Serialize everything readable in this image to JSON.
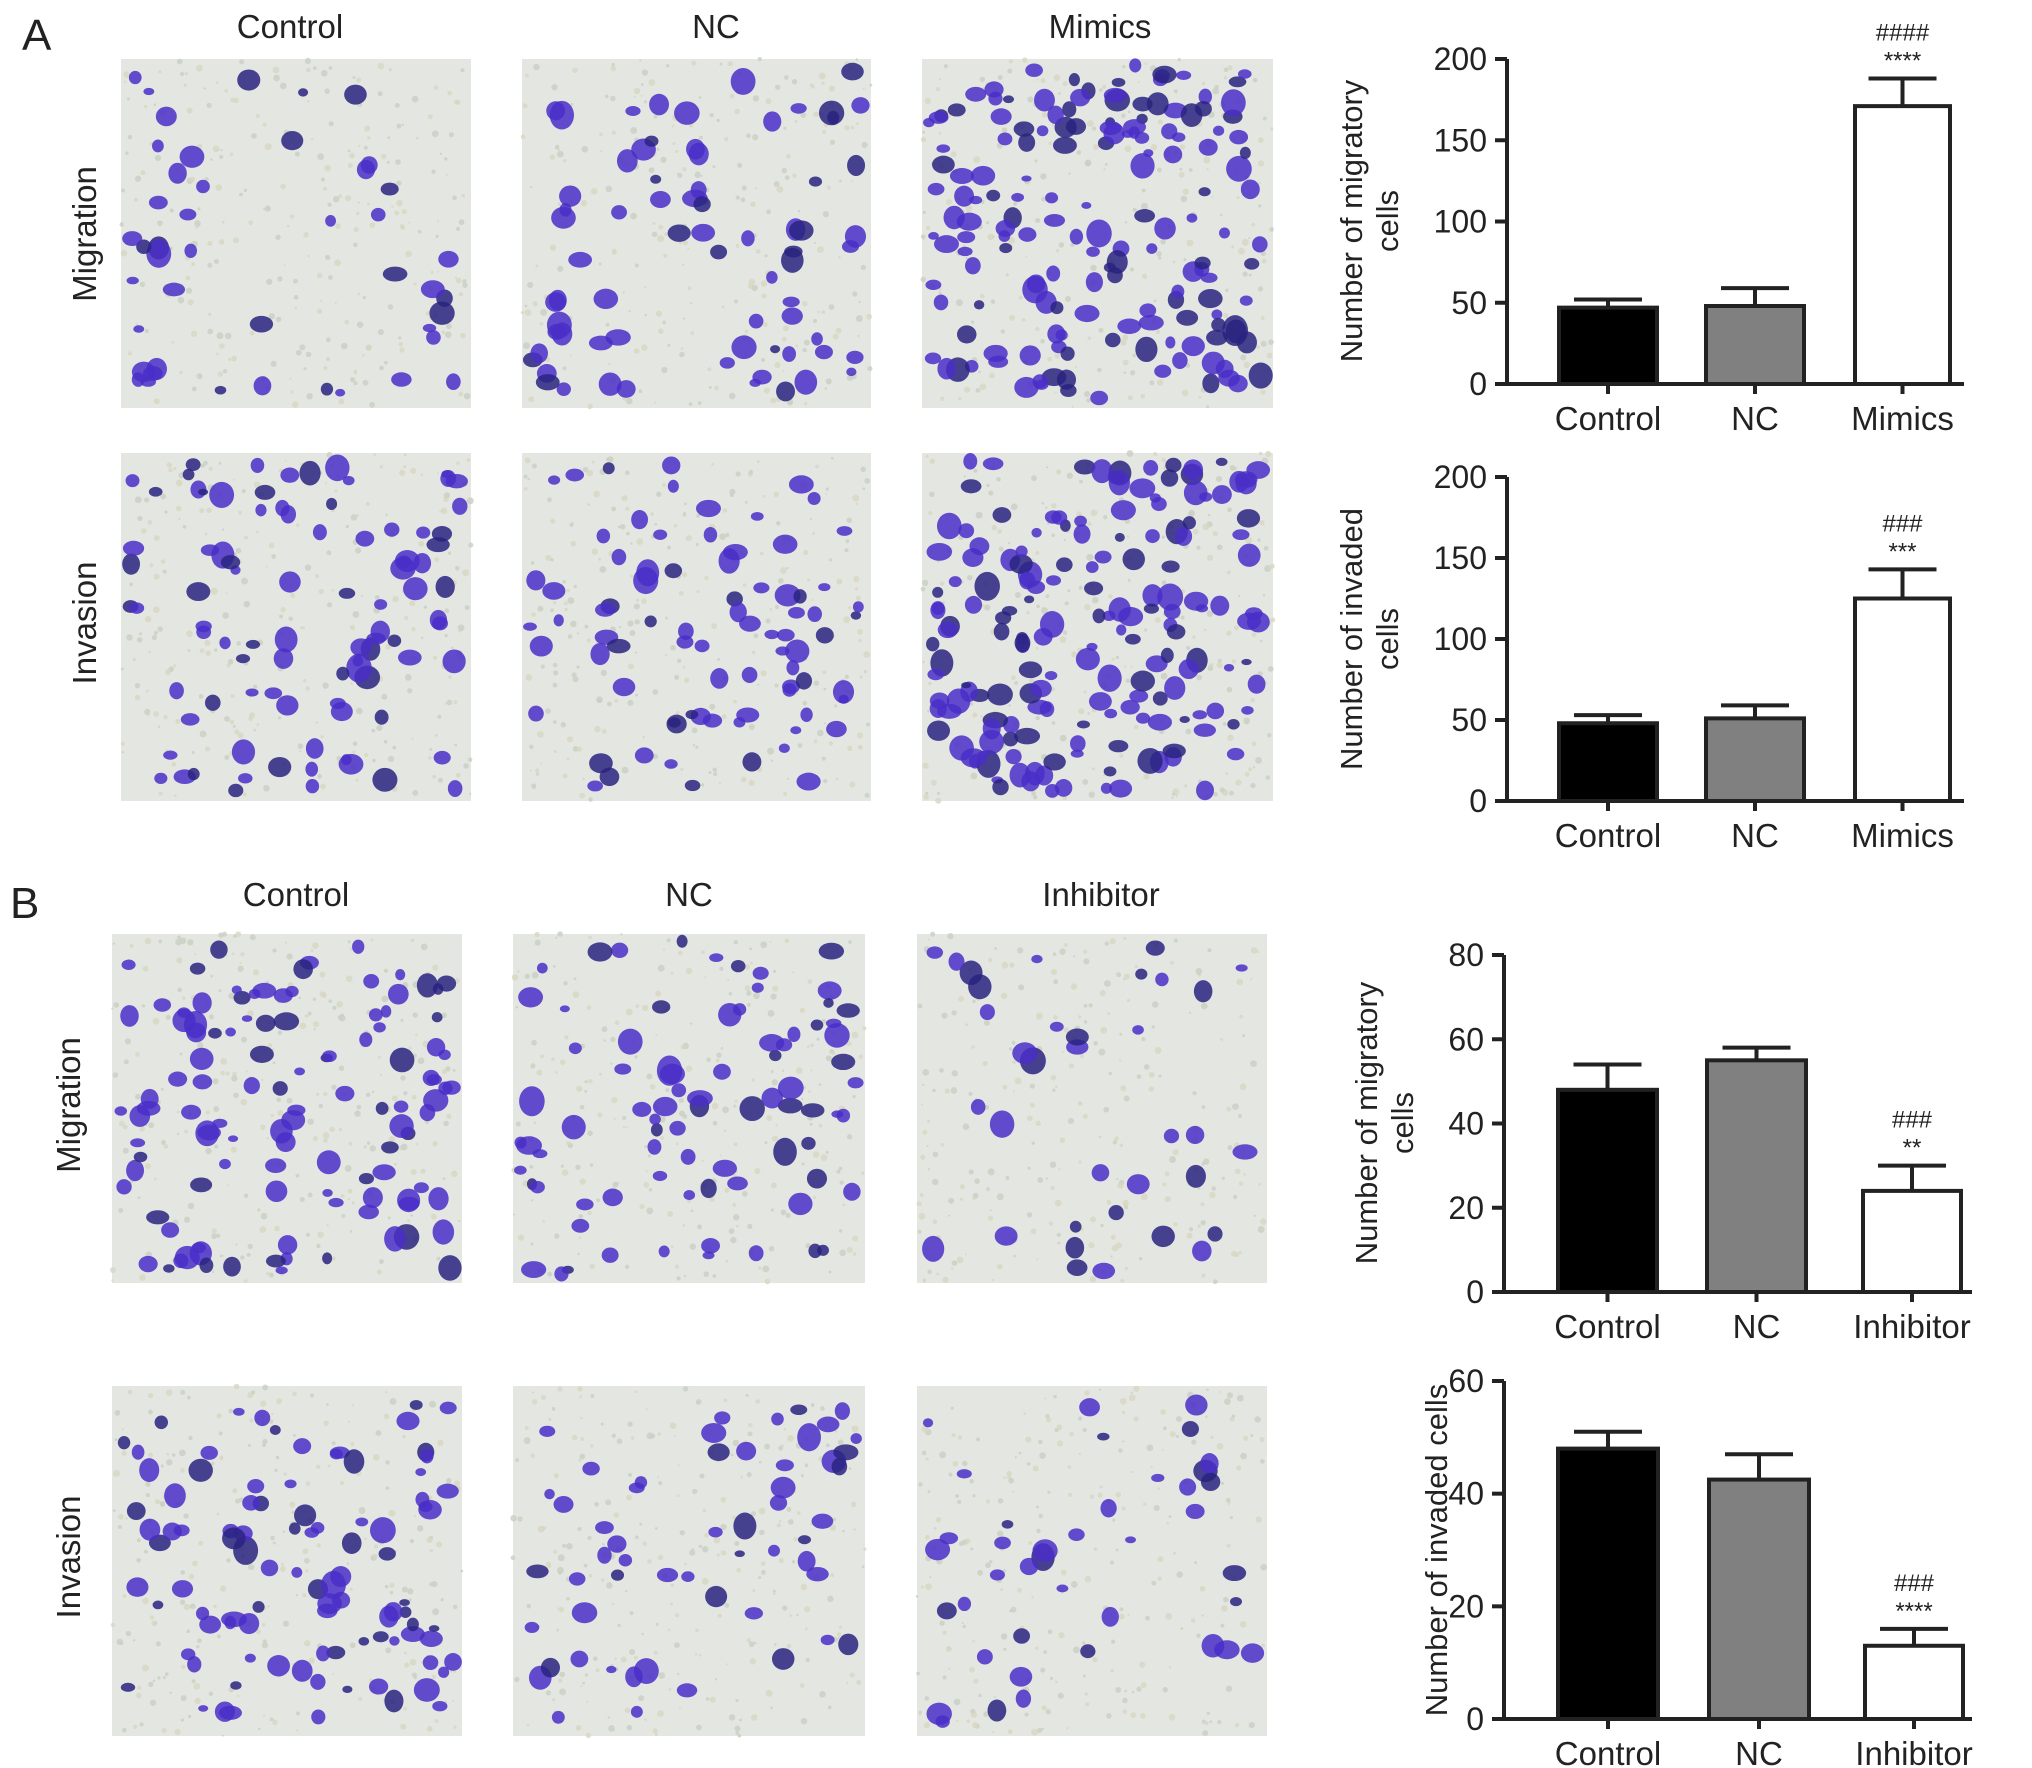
{
  "panels": [
    {
      "letter": "A",
      "columns": [
        "Control",
        "NC",
        "Mimics"
      ],
      "rows": [
        "Migration",
        "Invasion"
      ]
    },
    {
      "letter": "B",
      "columns": [
        "Control",
        "NC",
        "Inhibitor"
      ],
      "rows": [
        "Migration",
        "Invasion"
      ]
    }
  ],
  "colors": {
    "control": "#000000",
    "nc": "#808080",
    "treatment": "#ffffff",
    "stain": "#4a2ec8",
    "background": "#e4e6e2"
  },
  "chart_data": [
    {
      "type": "bar",
      "panel": "A",
      "title": "",
      "xlabel": "",
      "ylabel": "Number of migratory cells",
      "ylabel_lines": [
        "Number of migratory",
        "cells"
      ],
      "categories": [
        "Control",
        "NC",
        "Mimics"
      ],
      "values": [
        47,
        48,
        171
      ],
      "errors": [
        5,
        11,
        17
      ],
      "annotations": [
        null,
        null,
        [
          "####",
          "****"
        ]
      ],
      "ylim": [
        0,
        200
      ],
      "yticks": [
        0,
        50,
        100,
        150,
        200
      ]
    },
    {
      "type": "bar",
      "panel": "A",
      "title": "",
      "xlabel": "",
      "ylabel": "Number of invaded cells",
      "ylabel_lines": [
        "Number of invaded",
        "cells"
      ],
      "categories": [
        "Control",
        "NC",
        "Mimics"
      ],
      "values": [
        48,
        51,
        125
      ],
      "errors": [
        5,
        8,
        18
      ],
      "annotations": [
        null,
        null,
        [
          "###",
          "***"
        ]
      ],
      "ylim": [
        0,
        200
      ],
      "yticks": [
        0,
        50,
        100,
        150,
        200
      ]
    },
    {
      "type": "bar",
      "panel": "B",
      "title": "",
      "xlabel": "",
      "ylabel": "Number of migratory cells",
      "ylabel_lines": [
        "Number of migratory",
        "cells"
      ],
      "categories": [
        "Control",
        "NC",
        "Inhibitor"
      ],
      "values": [
        48,
        55,
        24
      ],
      "errors": [
        6,
        3,
        6
      ],
      "annotations": [
        null,
        null,
        [
          "###",
          "**"
        ]
      ],
      "ylim": [
        0,
        80
      ],
      "yticks": [
        0,
        20,
        40,
        60,
        80
      ]
    },
    {
      "type": "bar",
      "panel": "B",
      "title": "",
      "xlabel": "",
      "ylabel": "Number of invaded cells",
      "ylabel_lines": [
        "Number of invaded cells"
      ],
      "categories": [
        "Control",
        "NC",
        "Inhibitor"
      ],
      "values": [
        48,
        42.5,
        13
      ],
      "errors": [
        3,
        4.5,
        3
      ],
      "annotations": [
        null,
        null,
        [
          "###",
          "****"
        ]
      ],
      "ylim": [
        0,
        60
      ],
      "yticks": [
        0,
        20,
        40,
        60
      ]
    }
  ]
}
